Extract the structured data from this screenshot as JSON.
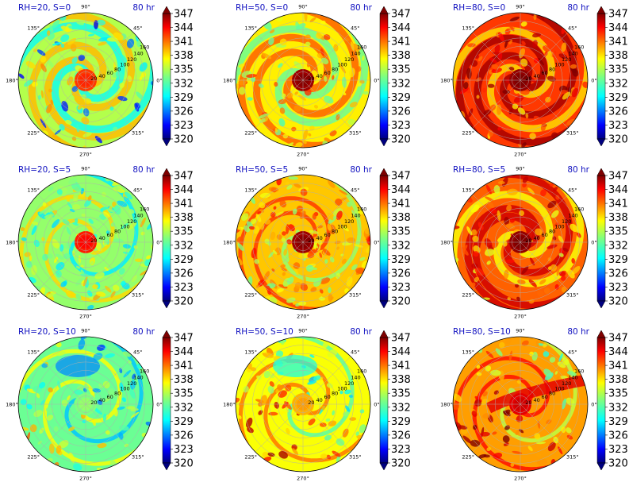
{
  "figure": {
    "colorbar": {
      "ticks": [
        "347",
        "344",
        "341",
        "338",
        "335",
        "332",
        "329",
        "326",
        "323",
        "320"
      ],
      "colormap": "jet",
      "vmin": 320,
      "vmax": 347
    },
    "angle_labels": {
      "a90": "90°",
      "a45": "45°",
      "a135": "135°",
      "a180": "180°",
      "a0": "0°",
      "a225": "225°",
      "a315": "315°",
      "a270": "270°"
    },
    "radial_labels": [
      "20",
      "40",
      "60",
      "80",
      "100",
      "120",
      "140",
      "160"
    ]
  },
  "chart_data": [
    {
      "type": "heatmap",
      "projection": "polar",
      "title": "RH=20, S=0",
      "time": "80 hr",
      "mean_level": 0.55,
      "core_level": 0.82,
      "pattern": "dry-spiral-bands"
    },
    {
      "type": "heatmap",
      "projection": "polar",
      "title": "RH=50, S=0",
      "time": "80 hr",
      "mean_level": 0.64,
      "core_level": 0.97,
      "pattern": "spiral-bands"
    },
    {
      "type": "heatmap",
      "projection": "polar",
      "title": "RH=80, S=0",
      "time": "80 hr",
      "mean_level": 0.82,
      "core_level": 0.98,
      "pattern": "spiral-bands"
    },
    {
      "type": "heatmap",
      "projection": "polar",
      "title": "RH=20, S=5",
      "time": "80 hr",
      "mean_level": 0.52,
      "core_level": 0.85,
      "pattern": "speckled"
    },
    {
      "type": "heatmap",
      "projection": "polar",
      "title": "RH=50, S=5",
      "time": "80 hr",
      "mean_level": 0.68,
      "core_level": 0.97,
      "pattern": "speckled"
    },
    {
      "type": "heatmap",
      "projection": "polar",
      "title": "RH=80, S=5",
      "time": "80 hr",
      "mean_level": 0.78,
      "core_level": 0.98,
      "pattern": "spiral-bands"
    },
    {
      "type": "heatmap",
      "projection": "polar",
      "title": "RH=20, S=10",
      "time": "80 hr",
      "mean_level": 0.48,
      "core_level": 0.5,
      "pattern": "asymmetric-dry"
    },
    {
      "type": "heatmap",
      "projection": "polar",
      "title": "RH=50, S=10",
      "time": "80 hr",
      "mean_level": 0.62,
      "core_level": 0.7,
      "pattern": "asymmetric"
    },
    {
      "type": "heatmap",
      "projection": "polar",
      "title": "RH=80, S=10",
      "time": "80 hr",
      "mean_level": 0.72,
      "core_level": 0.9,
      "pattern": "asymmetric-band"
    }
  ]
}
